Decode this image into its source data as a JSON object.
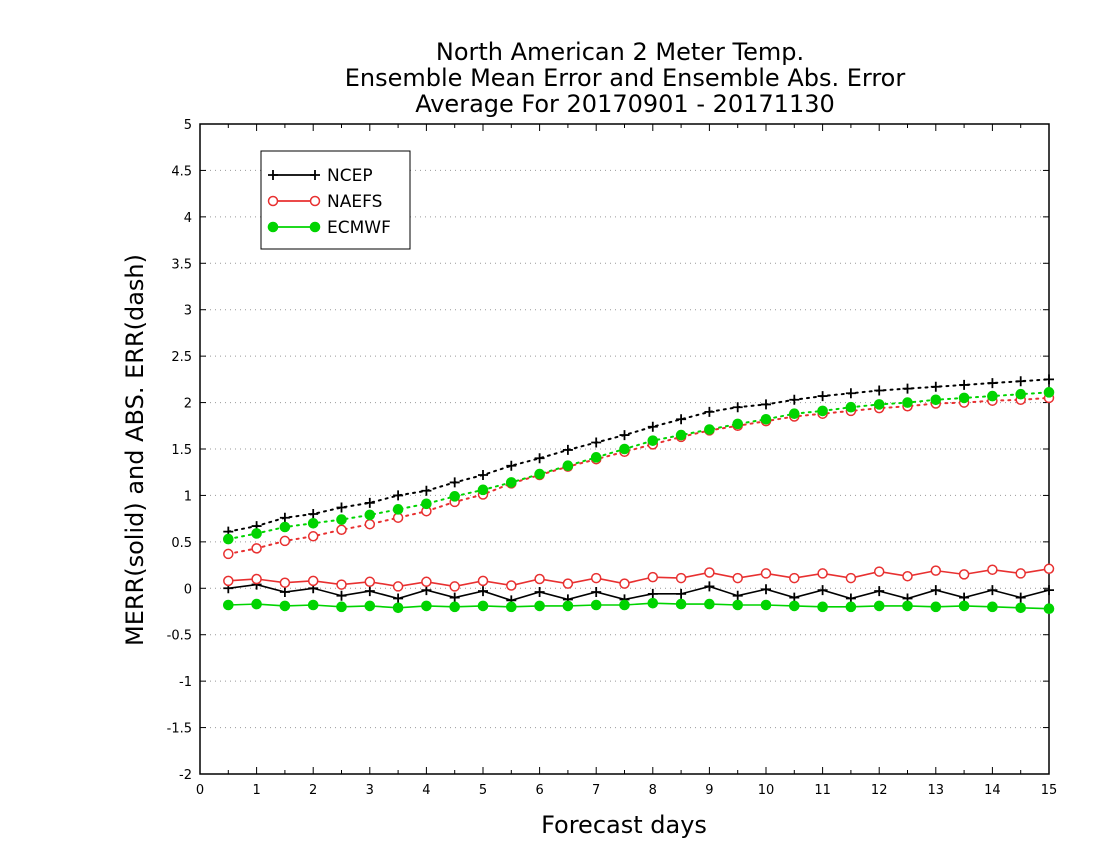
{
  "chart_data": {
    "type": "line",
    "title": [
      "North American 2 Meter Temp.",
      "Ensemble Mean Error and Ensemble Abs. Error",
      "Average For 20170901 - 20171130"
    ],
    "xlabel": "Forecast days",
    "ylabel": "MERR(solid) and ABS. ERR(dash)",
    "xlim": [
      0,
      15
    ],
    "ylim": [
      -2,
      5
    ],
    "xticks": [
      "0",
      "1",
      "2",
      "3",
      "4",
      "5",
      "6",
      "7",
      "8",
      "9",
      "10",
      "11",
      "12",
      "13",
      "14",
      "15"
    ],
    "yticks": [
      "-2",
      "-1.5",
      "-1",
      "-0.5",
      "0",
      "0.5",
      "1",
      "1.5",
      "2",
      "2.5",
      "3",
      "3.5",
      "4",
      "4.5",
      "5"
    ],
    "grid": "horizontal-dotted",
    "legend_position": "top-left",
    "x": [
      0.5,
      1,
      1.5,
      2,
      2.5,
      3,
      3.5,
      4,
      4.5,
      5,
      5.5,
      6,
      6.5,
      7,
      7.5,
      8,
      8.5,
      9,
      9.5,
      10,
      10.5,
      11,
      11.5,
      12,
      12.5,
      13,
      13.5,
      14,
      14.5,
      15
    ],
    "series": [
      {
        "name": "NCEP",
        "color": "#000000",
        "marker": "plus",
        "line": "solid",
        "metric": "MERR",
        "values": [
          0.0,
          0.04,
          -0.04,
          0.0,
          -0.08,
          -0.03,
          -0.11,
          -0.02,
          -0.1,
          -0.03,
          -0.13,
          -0.04,
          -0.12,
          -0.04,
          -0.12,
          -0.06,
          -0.06,
          0.02,
          -0.08,
          -0.01,
          -0.1,
          -0.02,
          -0.11,
          -0.03,
          -0.11,
          -0.02,
          -0.1,
          -0.02,
          -0.1,
          -0.02
        ]
      },
      {
        "name": "NAEFS",
        "color": "#e83030",
        "marker": "open-circle",
        "line": "solid",
        "metric": "MERR",
        "values": [
          0.08,
          0.1,
          0.06,
          0.08,
          0.04,
          0.07,
          0.02,
          0.07,
          0.02,
          0.08,
          0.03,
          0.1,
          0.05,
          0.11,
          0.05,
          0.12,
          0.11,
          0.17,
          0.11,
          0.16,
          0.11,
          0.16,
          0.11,
          0.18,
          0.13,
          0.19,
          0.15,
          0.2,
          0.16,
          0.21
        ]
      },
      {
        "name": "ECMWF",
        "color": "#00d400",
        "marker": "filled-circle",
        "line": "solid",
        "metric": "MERR",
        "values": [
          -0.18,
          -0.17,
          -0.19,
          -0.18,
          -0.2,
          -0.19,
          -0.21,
          -0.19,
          -0.2,
          -0.19,
          -0.2,
          -0.19,
          -0.19,
          -0.18,
          -0.18,
          -0.16,
          -0.17,
          -0.17,
          -0.18,
          -0.18,
          -0.19,
          -0.2,
          -0.2,
          -0.19,
          -0.19,
          -0.2,
          -0.19,
          -0.2,
          -0.21,
          -0.22
        ]
      },
      {
        "name": "NCEP",
        "color": "#000000",
        "marker": "plus",
        "line": "dotted",
        "metric": "ABS. ERR",
        "values": [
          0.61,
          0.67,
          0.76,
          0.8,
          0.87,
          0.92,
          1.0,
          1.05,
          1.14,
          1.22,
          1.32,
          1.4,
          1.49,
          1.57,
          1.65,
          1.74,
          1.82,
          1.9,
          1.95,
          1.98,
          2.03,
          2.07,
          2.1,
          2.13,
          2.15,
          2.17,
          2.19,
          2.21,
          2.23,
          2.25
        ]
      },
      {
        "name": "NAEFS",
        "color": "#e83030",
        "marker": "open-circle",
        "line": "dotted",
        "metric": "ABS. ERR",
        "values": [
          0.37,
          0.43,
          0.51,
          0.56,
          0.63,
          0.69,
          0.76,
          0.83,
          0.93,
          1.01,
          1.13,
          1.22,
          1.31,
          1.39,
          1.47,
          1.55,
          1.63,
          1.7,
          1.75,
          1.8,
          1.85,
          1.88,
          1.91,
          1.94,
          1.96,
          1.99,
          2.0,
          2.02,
          2.03,
          2.05
        ]
      },
      {
        "name": "ECMWF",
        "color": "#00d400",
        "marker": "filled-circle",
        "line": "dotted",
        "metric": "ABS. ERR",
        "values": [
          0.53,
          0.59,
          0.66,
          0.7,
          0.74,
          0.79,
          0.85,
          0.91,
          0.99,
          1.06,
          1.14,
          1.23,
          1.32,
          1.41,
          1.5,
          1.59,
          1.65,
          1.71,
          1.77,
          1.82,
          1.88,
          1.91,
          1.95,
          1.98,
          2.0,
          2.03,
          2.05,
          2.07,
          2.09,
          2.11
        ]
      }
    ]
  }
}
